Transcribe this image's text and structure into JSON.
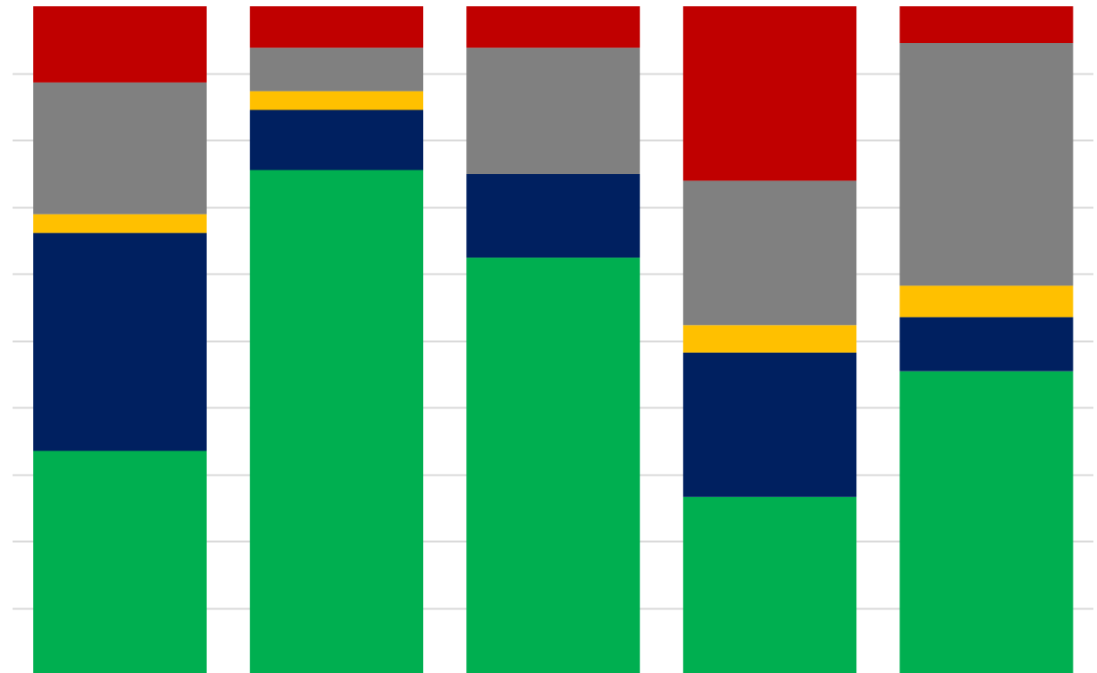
{
  "chart_data": {
    "type": "bar",
    "stacked": true,
    "percent_stacked": true,
    "categories": [
      "",
      "",
      "",
      "",
      ""
    ],
    "ylim": [
      0,
      100
    ],
    "grid": true,
    "series": [
      {
        "color": "#00AF50",
        "values": [
          33.5,
          75.5,
          62.4,
          26.6,
          45.4
        ]
      },
      {
        "color": "#002060",
        "values": [
          32.6,
          9.0,
          12.5,
          21.6,
          8.1
        ]
      },
      {
        "color": "#FFC000",
        "values": [
          2.8,
          2.8,
          0.0,
          4.1,
          4.7
        ]
      },
      {
        "color": "#808080",
        "values": [
          19.7,
          6.5,
          18.9,
          21.6,
          36.3
        ]
      },
      {
        "color": "#C00000",
        "values": [
          11.4,
          6.2,
          6.2,
          26.1,
          5.5
        ]
      }
    ],
    "gridline_color": "#d9d9d9"
  }
}
